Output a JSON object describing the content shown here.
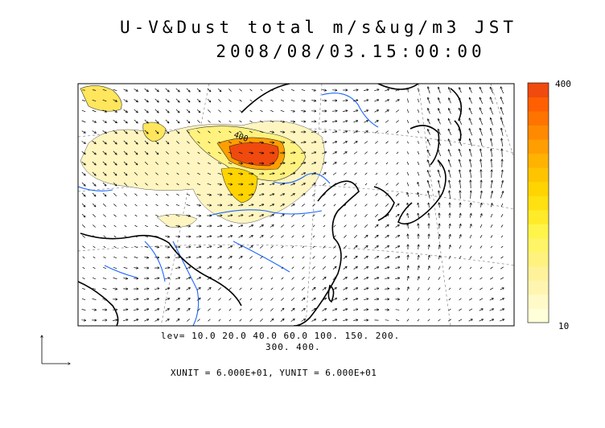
{
  "header": {
    "title": "U-V&Dust total m/s&ug/m3 JST",
    "datetime": "2008/08/03.15:00:00"
  },
  "legend": {
    "levels_line1": "lev= 10.0 20.0 40.0 60.0 100. 150. 200.",
    "levels_line2": "300. 400.",
    "units_text": "XUNIT = 6.000E+01, YUNIT = 6.000E+01",
    "colorbar_max_label": "400",
    "colorbar_min_label": "10",
    "contour_label": "400",
    "colorbar_colors": [
      "#ffffd9",
      "#fffac8",
      "#fff5b0",
      "#fff29a",
      "#fff27f",
      "#fff566",
      "#fff54a",
      "#ffeb2a",
      "#ffe011",
      "#ffd400",
      "#ffc400",
      "#ffb300",
      "#ff9e00",
      "#ff8a00",
      "#ff7400",
      "#ff5f00",
      "#f04a0e"
    ]
  },
  "colors": {
    "coast": "#000000",
    "river": "#1a66ff",
    "grid": "#888888",
    "dust_low": "#fff5c0",
    "dust_mid": "#ffe65c",
    "dust_high": "#ff7a1a",
    "dust_peak": "#f04a0e"
  },
  "icons": {
    "wind_vector": "arrow",
    "reference_vector": "arrow-axes"
  }
}
